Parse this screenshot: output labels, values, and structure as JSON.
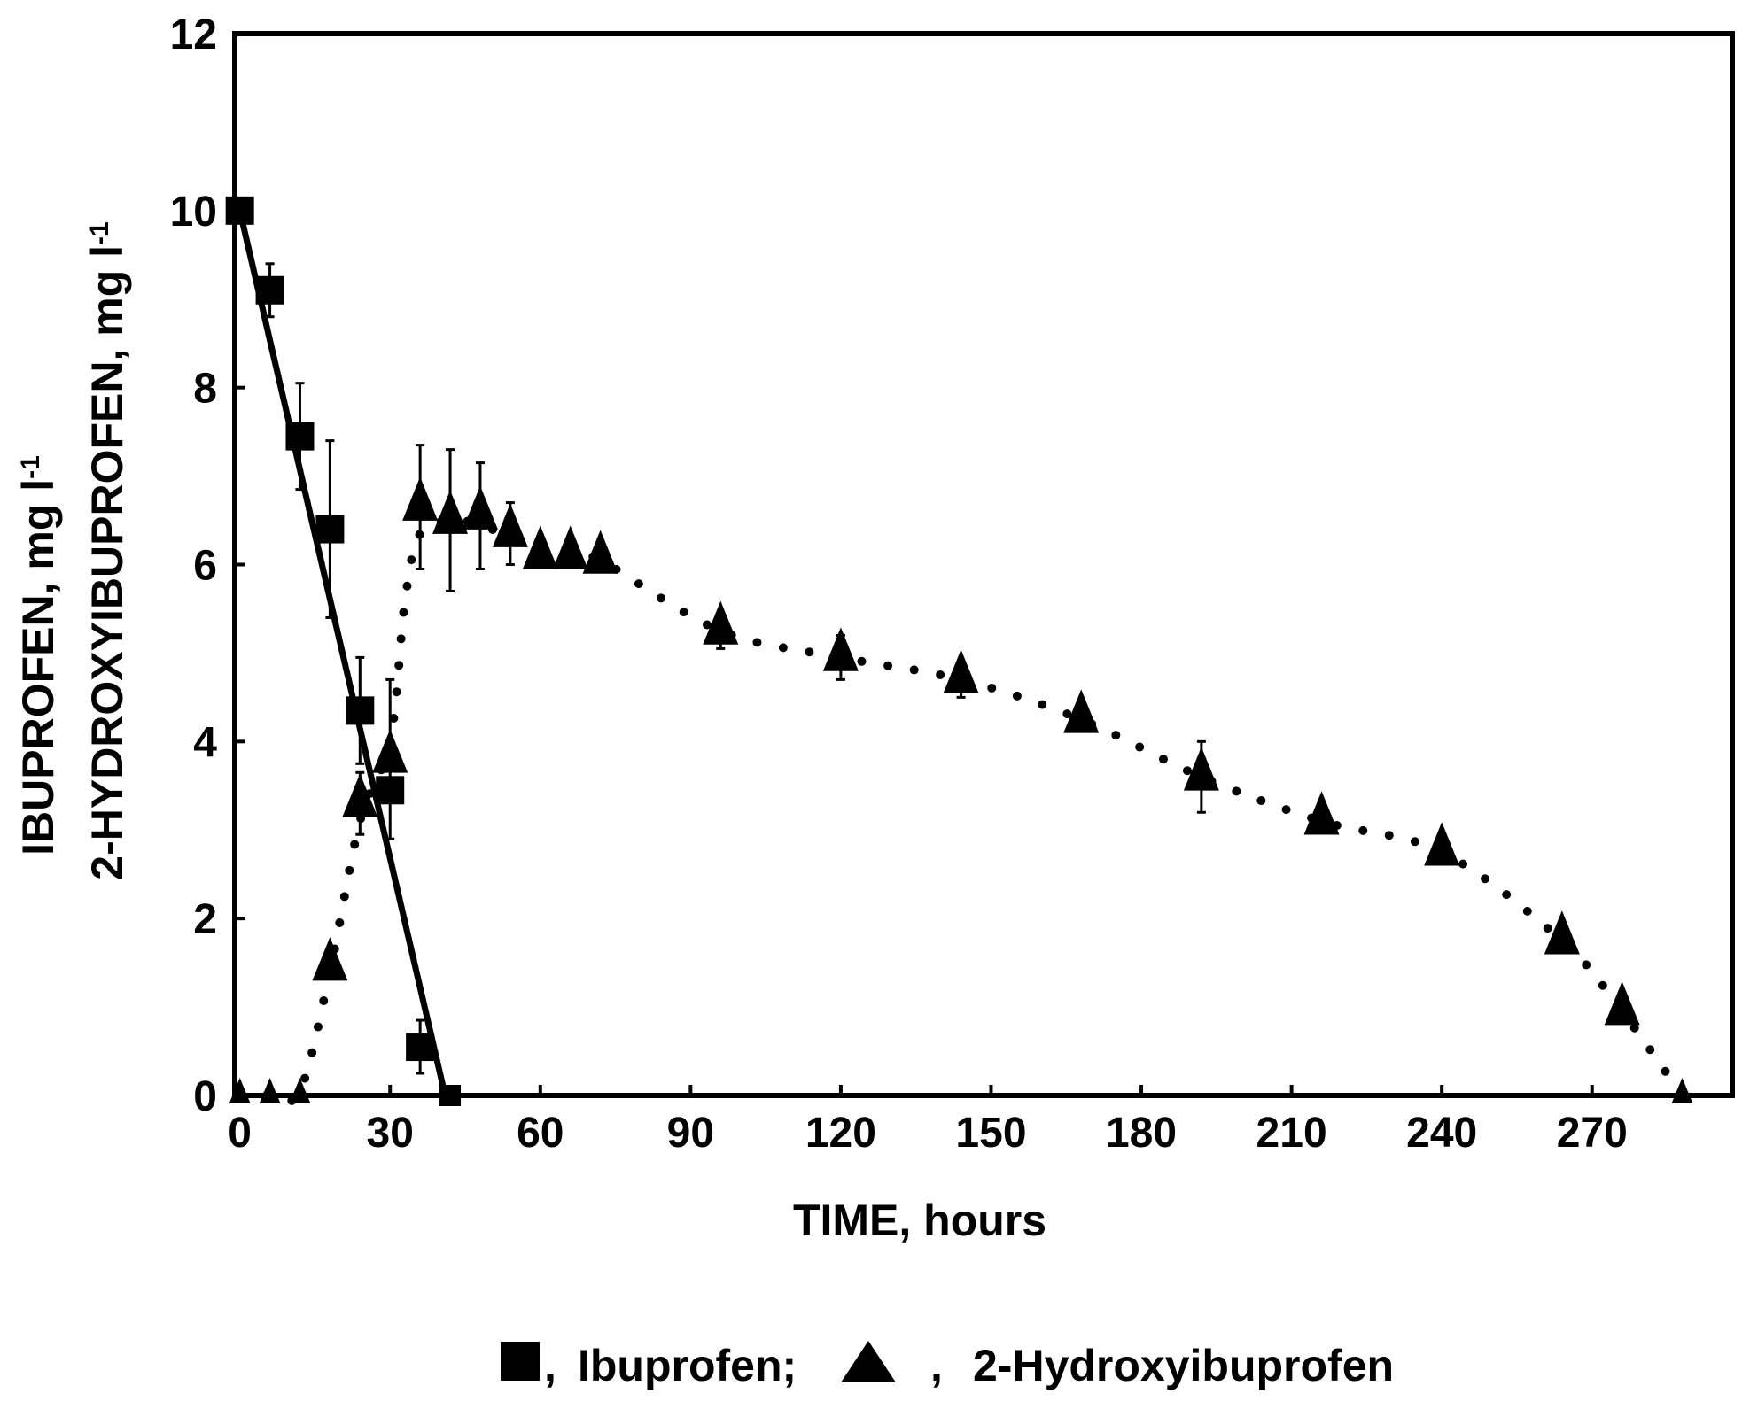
{
  "chart_data": {
    "type": "line",
    "xlabel": "TIME, hours",
    "ylabel_lines": [
      "IBUPROFEN, mg l",
      "2-HYDROXYIBUPROFEN, mg l"
    ],
    "ylabel_superscript": "-1",
    "xlim": [
      -1,
      298
    ],
    "ylim": [
      0,
      12
    ],
    "xticks": [
      0,
      30,
      60,
      90,
      120,
      150,
      180,
      210,
      240,
      270
    ],
    "xtick_labels": [
      "0",
      "30",
      "60",
      "90",
      "120",
      "150",
      "180",
      "210",
      "240",
      "270"
    ],
    "yticks": [
      0,
      2,
      4,
      6,
      8,
      10,
      12
    ],
    "ytick_labels": [
      "0",
      "2",
      "4",
      "6",
      "8",
      "10",
      "12"
    ],
    "grid": false,
    "legend": {
      "placement": "bottom-center",
      "separator": ",",
      "entries": [
        "Ibuprofen;",
        "2-Hydroxyibuprofen"
      ]
    },
    "series": [
      {
        "name": "Ibuprofen",
        "marker": "square",
        "line": "solid",
        "color": "#000000",
        "x": [
          0,
          6,
          12,
          18,
          24,
          30,
          36,
          42
        ],
        "y": [
          10.0,
          9.1,
          7.45,
          6.4,
          4.35,
          3.45,
          0.55,
          0.0
        ],
        "err": [
          0,
          0.3,
          0.6,
          1.0,
          0.6,
          0,
          0.3,
          0
        ],
        "fit_x": [
          0,
          41
        ],
        "fit_y": [
          10.0,
          0.0
        ]
      },
      {
        "name": "2-Hydroxyibuprofen",
        "marker": "triangle",
        "line": "dotted",
        "color": "#000000",
        "x": [
          0,
          6,
          12,
          18,
          24,
          30,
          36,
          42,
          48,
          54,
          60,
          66,
          72,
          96,
          120,
          144,
          168,
          192,
          216,
          240,
          264,
          276,
          288
        ],
        "y": [
          0.0,
          0.0,
          0.0,
          1.45,
          3.3,
          3.8,
          6.65,
          6.5,
          6.55,
          6.35,
          6.1,
          6.1,
          6.05,
          5.25,
          4.95,
          4.7,
          4.25,
          3.6,
          3.1,
          2.75,
          1.75,
          0.95,
          0.0
        ],
        "err": [
          0,
          0,
          0,
          0,
          0.35,
          0.9,
          0.7,
          0.8,
          0.6,
          0.35,
          0,
          0,
          0,
          0.2,
          0.25,
          0.2,
          0,
          0.4,
          0,
          0,
          0,
          0,
          0
        ],
        "curve_x": [
          0,
          6,
          12,
          18,
          24,
          30,
          33,
          36,
          42,
          48,
          54,
          60,
          66,
          72,
          96,
          120,
          144,
          168,
          192,
          216,
          240,
          264,
          276,
          288
        ],
        "curve_y": [
          0.0,
          0.0,
          0.05,
          1.4,
          3.1,
          4.0,
          5.6,
          6.35,
          6.5,
          6.45,
          6.3,
          6.15,
          6.1,
          6.05,
          5.25,
          4.95,
          4.7,
          4.25,
          3.6,
          3.1,
          2.75,
          1.75,
          0.95,
          0.0
        ]
      }
    ]
  }
}
